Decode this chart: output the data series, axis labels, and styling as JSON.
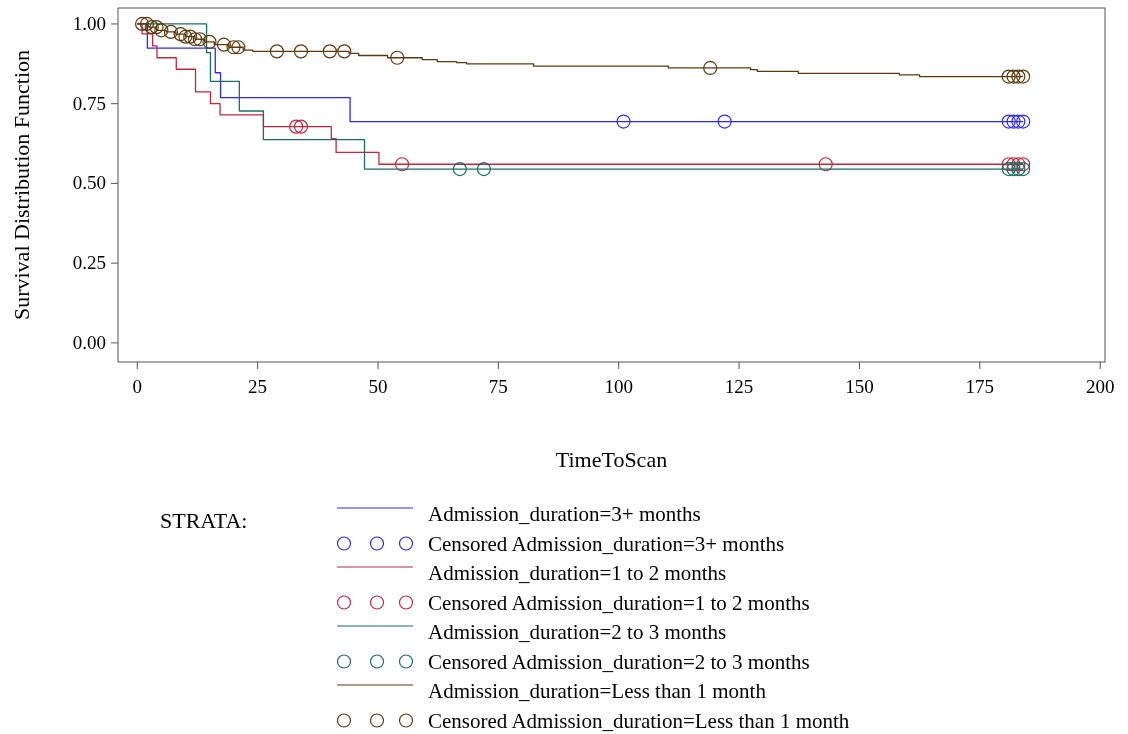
{
  "chart_data": {
    "type": "step",
    "xlabel": "TimeToScan",
    "ylabel": "Survival Distribution Function",
    "legend_title": "STRATA:",
    "legend": "bottom",
    "grid": false,
    "xlim": [
      -4,
      201
    ],
    "ylim": [
      -0.06,
      1.05
    ],
    "xticks": [
      0,
      25,
      50,
      75,
      100,
      125,
      150,
      175,
      200
    ],
    "yticks": [
      {
        "value": 0,
        "label": "0.00"
      },
      {
        "value": 0.25,
        "label": "0.25"
      },
      {
        "value": 0.5,
        "label": "0.50"
      },
      {
        "value": 0.75,
        "label": "0.75"
      },
      {
        "value": 1,
        "label": "1.00"
      }
    ],
    "series": [
      {
        "name": "Admission_duration=3+ months",
        "color": "#2b2bf0",
        "x": [
          0,
          2.1,
          16.2,
          17.3,
          44.2,
          184
        ],
        "values": [
          1,
          0.924,
          0.847,
          0.769,
          0.694,
          0.694
        ]
      },
      {
        "name": "Censored Admission_duration=3+ months",
        "type": "scatter",
        "color": "#2b2bf0",
        "marker": "circle",
        "x": [
          101,
          122,
          181,
          182,
          183,
          184
        ],
        "values": [
          0.694,
          0.694,
          0.694,
          0.694,
          0.694,
          0.694
        ]
      },
      {
        "name": "Admission_duration=1 to 2 months",
        "color": "#c0283c",
        "x": [
          0,
          1,
          3.2,
          4.1,
          8.1,
          12.1,
          15.2,
          17.2,
          26.2,
          40.3,
          41.3,
          50.2,
          184
        ],
        "values": [
          1,
          0.969,
          0.931,
          0.894,
          0.858,
          0.787,
          0.75,
          0.715,
          0.678,
          0.64,
          0.597,
          0.56,
          0.56
        ]
      },
      {
        "name": "Censored Admission_duration=1 to 2 months",
        "type": "scatter",
        "color": "#c0283c",
        "marker": "circle",
        "x": [
          33,
          34,
          55,
          143,
          181,
          182,
          183,
          184
        ],
        "values": [
          0.678,
          0.678,
          0.56,
          0.56,
          0.56,
          0.56,
          0.56,
          0.56
        ]
      },
      {
        "name": "Admission_duration=2 to 3 months",
        "color": "#1b6e63",
        "x": [
          0,
          14.4,
          15.2,
          21.2,
          26.2,
          47.2,
          184
        ],
        "values": [
          1,
          0.91,
          0.82,
          0.727,
          0.637,
          0.545,
          0.545
        ]
      },
      {
        "name": "Censored Admission_duration=2 to 3 months",
        "type": "scatter",
        "color": "#1b6e63",
        "marker": "circle",
        "x": [
          67,
          72,
          181,
          182,
          183,
          184
        ],
        "values": [
          0.545,
          0.545,
          0.545,
          0.545,
          0.545,
          0.545
        ]
      },
      {
        "name": "Admission_duration=Less than 1 month",
        "color": "#5c3a0e",
        "x": [
          0,
          2,
          4,
          6,
          8,
          10,
          12,
          14,
          16,
          19,
          22,
          24,
          44,
          46,
          52,
          59.2,
          62.3,
          66.3,
          68.4,
          82.3,
          110.3,
          127.4,
          128.8,
          137.3,
          158.3,
          162.5,
          184
        ],
        "values": [
          1,
          0.99,
          0.98,
          0.975,
          0.968,
          0.96,
          0.952,
          0.944,
          0.935,
          0.927,
          0.918,
          0.914,
          0.908,
          0.901,
          0.894,
          0.888,
          0.882,
          0.879,
          0.875,
          0.868,
          0.862,
          0.857,
          0.851,
          0.845,
          0.84,
          0.835,
          0.835
        ]
      },
      {
        "name": "Censored Admission_duration=Less than 1 month",
        "type": "scatter",
        "color": "#5c3a0e",
        "marker": "circle",
        "x": [
          1,
          2,
          3,
          4,
          5,
          7,
          9,
          10,
          11,
          12,
          13,
          15,
          18,
          20,
          21,
          29,
          34,
          40,
          43,
          54,
          119,
          181,
          182,
          183,
          184
        ],
        "values": [
          1,
          1,
          0.99,
          0.99,
          0.98,
          0.975,
          0.968,
          0.96,
          0.96,
          0.952,
          0.952,
          0.944,
          0.935,
          0.927,
          0.927,
          0.914,
          0.914,
          0.914,
          0.914,
          0.894,
          0.862,
          0.835,
          0.835,
          0.835,
          0.835
        ]
      }
    ]
  }
}
